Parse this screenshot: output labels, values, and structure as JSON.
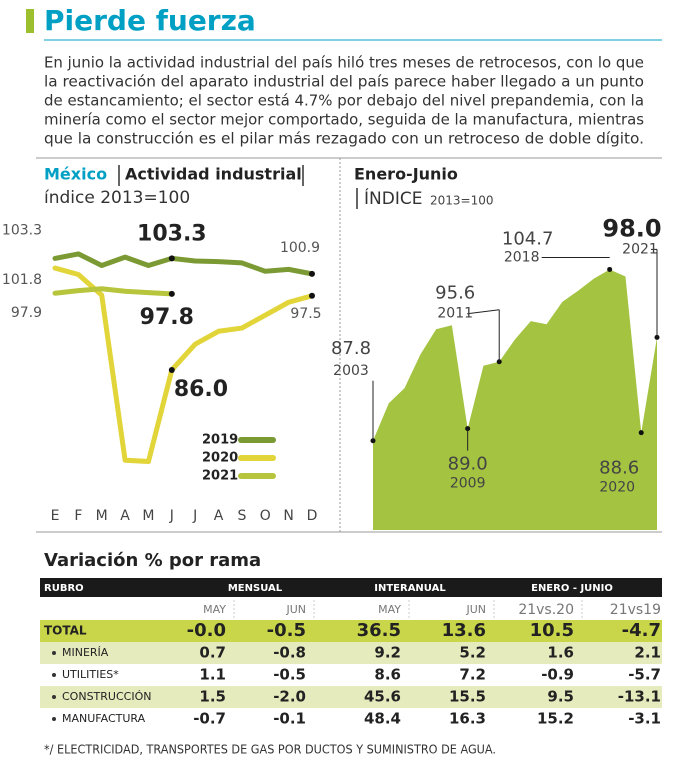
{
  "header": {
    "title": "Pierde fuerza",
    "text_lines": [
      "En junio la actividad industrial del país hiló tres meses de retrocesos, con lo que",
      "la reactivación del aparato industrial del país parece haber llegado a un punto",
      "de estancamiento; el sector está 4.7% por debajo del nivel prepandemia, con la",
      "minería como el sector mejor comportado, seguida de la manufactura, mientras",
      "que la construcción es el pilar más rezagado con un retroceso de doble dígito."
    ]
  },
  "chart_data": [
    {
      "type": "line",
      "title_prefix": "México",
      "title": "Actividad industrial",
      "subtitle": "índice 2013=100",
      "categories": [
        "E",
        "F",
        "M",
        "A",
        "M",
        "J",
        "J",
        "A",
        "S",
        "O",
        "N",
        "D"
      ],
      "ylim": [
        68,
        106
      ],
      "series": [
        {
          "name": "2019",
          "color": "#7c9a34",
          "values": [
            103.3,
            104.0,
            102.2,
            103.5,
            102.2,
            103.3,
            102.9,
            102.8,
            102.6,
            101.3,
            101.6,
            100.9
          ],
          "value_labels": [
            "103.3",
            null,
            null,
            null,
            null,
            "103.3",
            null,
            null,
            null,
            null,
            null,
            "100.9"
          ]
        },
        {
          "name": "2020",
          "color": "#e2d53a",
          "values": [
            101.8,
            100.8,
            97.6,
            72.0,
            71.8,
            86.0,
            90.0,
            92.0,
            92.5,
            94.5,
            96.5,
            97.5
          ],
          "value_labels": [
            "101.8",
            null,
            null,
            null,
            null,
            "86.0",
            null,
            null,
            null,
            null,
            null,
            "97.5"
          ]
        },
        {
          "name": "2021",
          "color": "#b7c53c",
          "values": [
            97.9,
            98.3,
            98.6,
            98.2,
            98.0,
            97.8,
            null,
            null,
            null,
            null,
            null,
            null
          ],
          "value_labels": [
            "97.9",
            null,
            null,
            null,
            null,
            "97.8",
            null,
            null,
            null,
            null,
            null,
            null
          ]
        }
      ]
    },
    {
      "type": "area",
      "title": "Enero-Junio",
      "subtitle": "ÍNDICE",
      "subtitle_note": "2013=100",
      "categories": [
        "2003",
        null,
        null,
        null,
        null,
        null,
        "2009",
        null,
        "2011",
        null,
        null,
        null,
        null,
        null,
        null,
        "2018",
        null,
        "2020",
        "2021"
      ],
      "values": [
        87.8,
        91.5,
        93.0,
        96.3,
        98.8,
        99.2,
        89.0,
        95.2,
        95.6,
        97.8,
        99.6,
        99.3,
        101.5,
        102.6,
        103.8,
        104.7,
        104.0,
        88.6,
        98.0
      ],
      "value_labels": [
        "87.8",
        null,
        null,
        null,
        null,
        null,
        "89.0",
        null,
        "95.6",
        null,
        null,
        null,
        null,
        null,
        null,
        "104.7",
        null,
        "88.6",
        "98.0"
      ],
      "color": "#a3c341",
      "ylim": [
        79,
        108
      ]
    }
  ],
  "table": {
    "title": "Variación % por rama",
    "columns": [
      "RUBRO",
      "MENSUAL",
      "INTERANUAL",
      "ENERO - JUNIO"
    ],
    "subcolumns": [
      "MAY",
      "JUN",
      "MAY",
      "JUN",
      "21vs.20",
      "21vs19"
    ],
    "rows": [
      [
        "TOTAL",
        "-0.0",
        "-0.5",
        "36.5",
        "13.6",
        "10.5",
        "-4.7"
      ],
      [
        "MINERÍA",
        "0.7",
        "-0.8",
        "9.2",
        "5.2",
        "1.6",
        "2.1"
      ],
      [
        "UTILITIES*",
        "1.1",
        "-0.5",
        "8.6",
        "7.2",
        "-0.9",
        "-5.7"
      ],
      [
        "CONSTRUCCIÓN",
        "1.5",
        "-2.0",
        "45.6",
        "15.5",
        "9.5",
        "-13.1"
      ],
      [
        "MANUFACTURA",
        "-0.7",
        "-0.1",
        "48.4",
        "16.3",
        "15.2",
        "-3.1"
      ]
    ],
    "footnote": "*/ ELECTRICIDAD, TRANSPORTES DE GAS POR DUCTOS Y SUMINISTRO DE AGUA."
  }
}
